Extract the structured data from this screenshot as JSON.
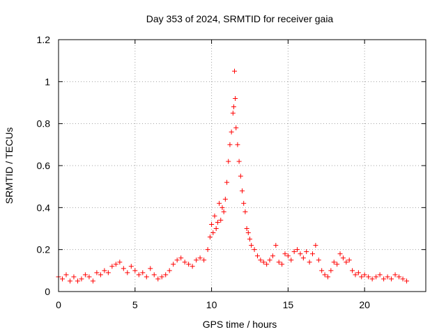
{
  "chart_data": {
    "type": "scatter",
    "title": "Day 353 of 2024, SRMTID for receiver gaia",
    "xlabel": "GPS time / hours",
    "ylabel": "SRMTID / TECUs",
    "xlim": [
      0,
      24
    ],
    "ylim": [
      0,
      1.2
    ],
    "x_ticks": [
      0,
      5,
      10,
      15,
      20
    ],
    "x_tick_labels": [
      "0",
      "5",
      "10",
      "15",
      "20"
    ],
    "y_ticks": [
      0,
      0.2,
      0.4,
      0.6,
      0.8,
      1.0,
      1.2
    ],
    "y_tick_labels": [
      "0",
      "0.2",
      "0.4",
      "0.6",
      "0.8",
      "1",
      "1.2"
    ],
    "grid": true,
    "marker": "plus",
    "colors": {
      "series": "#ff0000",
      "grid": "#a0a0a0",
      "axis": "#000000"
    },
    "series": [
      {
        "name": "SRMTID",
        "x": [
          0.0,
          0.25,
          0.5,
          0.75,
          1.0,
          1.25,
          1.5,
          1.75,
          2.0,
          2.25,
          2.5,
          2.75,
          3.0,
          3.25,
          3.5,
          3.75,
          4.0,
          4.25,
          4.5,
          4.75,
          5.0,
          5.25,
          5.5,
          5.75,
          6.0,
          6.25,
          6.5,
          6.75,
          7.0,
          7.25,
          7.5,
          7.75,
          8.0,
          8.25,
          8.5,
          8.75,
          9.0,
          9.25,
          9.5,
          9.75,
          9.9,
          10.0,
          10.1,
          10.2,
          10.3,
          10.4,
          10.5,
          10.6,
          10.7,
          10.8,
          10.9,
          11.0,
          11.1,
          11.2,
          11.3,
          11.4,
          11.45,
          11.5,
          11.55,
          11.6,
          11.7,
          11.8,
          11.9,
          12.0,
          12.1,
          12.2,
          12.3,
          12.4,
          12.5,
          12.6,
          12.8,
          13.0,
          13.2,
          13.4,
          13.6,
          13.8,
          14.0,
          14.2,
          14.4,
          14.6,
          14.8,
          15.0,
          15.2,
          15.4,
          15.6,
          15.8,
          16.0,
          16.2,
          16.4,
          16.6,
          16.8,
          17.0,
          17.2,
          17.4,
          17.6,
          17.8,
          18.0,
          18.2,
          18.4,
          18.6,
          18.8,
          19.0,
          19.2,
          19.4,
          19.6,
          19.8,
          20.0,
          20.25,
          20.5,
          20.75,
          21.0,
          21.25,
          21.5,
          21.75,
          22.0,
          22.25,
          22.5,
          22.75
        ],
        "y": [
          0.07,
          0.06,
          0.08,
          0.05,
          0.07,
          0.05,
          0.06,
          0.08,
          0.07,
          0.05,
          0.09,
          0.08,
          0.1,
          0.09,
          0.12,
          0.13,
          0.14,
          0.11,
          0.09,
          0.12,
          0.1,
          0.08,
          0.09,
          0.07,
          0.11,
          0.08,
          0.06,
          0.07,
          0.08,
          0.1,
          0.13,
          0.15,
          0.16,
          0.14,
          0.13,
          0.12,
          0.15,
          0.16,
          0.15,
          0.2,
          0.26,
          0.32,
          0.28,
          0.36,
          0.3,
          0.33,
          0.42,
          0.34,
          0.4,
          0.38,
          0.44,
          0.52,
          0.62,
          0.7,
          0.76,
          0.85,
          0.88,
          1.05,
          0.92,
          0.78,
          0.7,
          0.62,
          0.55,
          0.48,
          0.42,
          0.38,
          0.3,
          0.28,
          0.25,
          0.22,
          0.2,
          0.17,
          0.15,
          0.14,
          0.13,
          0.15,
          0.17,
          0.22,
          0.14,
          0.13,
          0.18,
          0.17,
          0.15,
          0.19,
          0.2,
          0.18,
          0.16,
          0.19,
          0.14,
          0.18,
          0.22,
          0.15,
          0.1,
          0.08,
          0.07,
          0.1,
          0.14,
          0.13,
          0.18,
          0.16,
          0.14,
          0.15,
          0.1,
          0.08,
          0.09,
          0.07,
          0.08,
          0.07,
          0.06,
          0.07,
          0.08,
          0.06,
          0.07,
          0.06,
          0.08,
          0.07,
          0.06,
          0.05
        ]
      }
    ]
  }
}
